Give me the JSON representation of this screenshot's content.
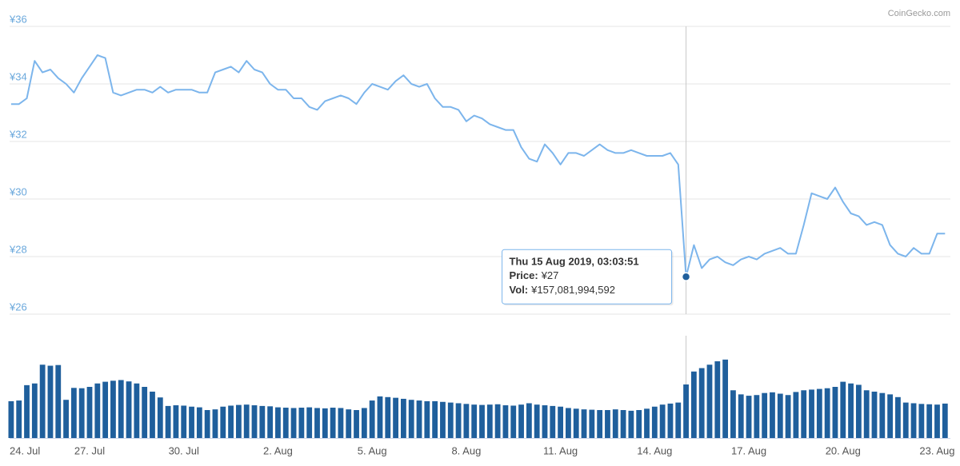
{
  "credit": "CoinGecko.com",
  "chart_data": [
    {
      "type": "line",
      "color": "#7cb5ec",
      "grid": true,
      "ylim": [
        26,
        36
      ],
      "yticks": [
        {
          "value": 26,
          "label": "¥26"
        },
        {
          "value": 28,
          "label": "¥28"
        },
        {
          "value": 30,
          "label": "¥30"
        },
        {
          "value": 32,
          "label": "¥32"
        },
        {
          "value": 34,
          "label": "¥34"
        },
        {
          "value": 36,
          "label": "¥36"
        }
      ],
      "values": [
        33.3,
        33.3,
        33.5,
        34.8,
        34.4,
        34.5,
        34.2,
        34.0,
        33.7,
        34.2,
        34.6,
        35.0,
        34.9,
        33.7,
        33.6,
        33.7,
        33.8,
        33.8,
        33.7,
        33.9,
        33.7,
        33.8,
        33.8,
        33.8,
        33.7,
        33.7,
        34.4,
        34.5,
        34.6,
        34.4,
        34.8,
        34.5,
        34.4,
        34.0,
        33.8,
        33.8,
        33.5,
        33.5,
        33.2,
        33.1,
        33.4,
        33.5,
        33.6,
        33.5,
        33.3,
        33.7,
        34.0,
        33.9,
        33.8,
        34.1,
        34.3,
        34.0,
        33.9,
        34.0,
        33.5,
        33.2,
        33.2,
        33.1,
        32.7,
        32.9,
        32.8,
        32.6,
        32.5,
        32.4,
        32.4,
        31.8,
        31.4,
        31.3,
        31.9,
        31.6,
        31.2,
        31.6,
        31.6,
        31.5,
        31.7,
        31.9,
        31.7,
        31.6,
        31.6,
        31.7,
        31.6,
        31.5,
        31.5,
        31.5,
        31.6,
        31.2,
        27.3,
        28.4,
        27.6,
        27.9,
        28.0,
        27.8,
        27.7,
        27.9,
        28.0,
        27.9,
        28.1,
        28.2,
        28.3,
        28.1,
        28.1,
        29.1,
        30.2,
        30.1,
        30.0,
        30.4,
        29.9,
        29.5,
        29.4,
        29.1,
        29.2,
        29.1,
        28.4,
        28.1,
        28.0,
        28.3,
        28.1,
        28.1,
        28.8,
        28.8
      ]
    },
    {
      "type": "bar",
      "color": "#1f5f9c",
      "ylim": [
        0,
        300000000000
      ],
      "categories": [
        "24. Jul",
        null,
        null,
        null,
        null,
        null,
        null,
        null,
        null,
        null,
        "27. Jul",
        null,
        null,
        null,
        null,
        null,
        null,
        null,
        null,
        null,
        null,
        null,
        "30. Jul",
        null,
        null,
        null,
        null,
        null,
        null,
        null,
        null,
        null,
        null,
        null,
        "2. Aug",
        null,
        null,
        null,
        null,
        null,
        null,
        null,
        null,
        null,
        null,
        null,
        "5. Aug",
        null,
        null,
        null,
        null,
        null,
        null,
        null,
        null,
        null,
        null,
        null,
        "8. Aug",
        null,
        null,
        null,
        null,
        null,
        null,
        null,
        null,
        null,
        null,
        null,
        "11. Aug",
        null,
        null,
        null,
        null,
        null,
        null,
        null,
        null,
        null,
        null,
        null,
        "14. Aug",
        null,
        null,
        null,
        null,
        null,
        null,
        null,
        null,
        null,
        null,
        null,
        "17. Aug",
        null,
        null,
        null,
        null,
        null,
        null,
        null,
        null,
        null,
        null,
        null,
        "20. Aug",
        null,
        null,
        null,
        null,
        null,
        null,
        null,
        null,
        null,
        null,
        null,
        "23. Aug",
        null
      ],
      "values": [
        108000000000,
        110000000000,
        155000000000,
        160000000000,
        215000000000,
        212000000000,
        214000000000,
        112000000000,
        147000000000,
        146000000000,
        150000000000,
        160000000000,
        165000000000,
        168000000000,
        170000000000,
        166000000000,
        160000000000,
        150000000000,
        136000000000,
        119000000000,
        94000000000,
        96000000000,
        95000000000,
        92000000000,
        90000000000,
        82000000000,
        84000000000,
        92000000000,
        95000000000,
        97000000000,
        98000000000,
        96000000000,
        94000000000,
        93000000000,
        90000000000,
        89000000000,
        88000000000,
        89000000000,
        90000000000,
        88000000000,
        87000000000,
        89000000000,
        88000000000,
        84000000000,
        82000000000,
        88000000000,
        110000000000,
        122000000000,
        120000000000,
        118000000000,
        115000000000,
        112000000000,
        110000000000,
        108000000000,
        108000000000,
        106000000000,
        104000000000,
        102000000000,
        100000000000,
        98000000000,
        97000000000,
        98000000000,
        99000000000,
        96000000000,
        95000000000,
        98000000000,
        102000000000,
        98000000000,
        96000000000,
        94000000000,
        92000000000,
        88000000000,
        86000000000,
        84000000000,
        83000000000,
        82000000000,
        82000000000,
        84000000000,
        82000000000,
        80000000000,
        82000000000,
        86000000000,
        92000000000,
        98000000000,
        101000000000,
        104000000000,
        157081994592,
        195000000000,
        205000000000,
        215000000000,
        225000000000,
        230000000000,
        140000000000,
        128000000000,
        124000000000,
        126000000000,
        132000000000,
        134000000000,
        130000000000,
        126000000000,
        135000000000,
        140000000000,
        142000000000,
        144000000000,
        146000000000,
        150000000000,
        165000000000,
        160000000000,
        156000000000,
        140000000000,
        136000000000,
        132000000000,
        128000000000,
        120000000000,
        104000000000,
        102000000000,
        100000000000,
        99000000000,
        98000000000,
        101000000000
      ]
    }
  ],
  "tooltip": {
    "title": "Thu 15 Aug 2019, 03:03:51",
    "rows": [
      {
        "label": "Price:",
        "value": "¥27"
      },
      {
        "label": "Vol:",
        "value": "¥157,081,994,592"
      }
    ]
  }
}
